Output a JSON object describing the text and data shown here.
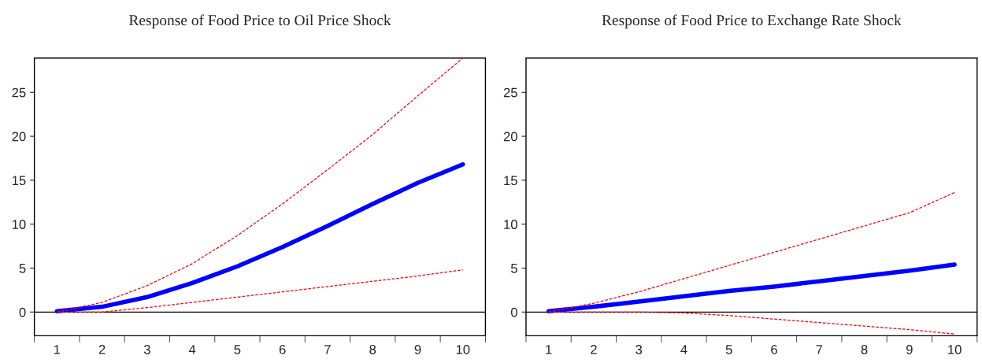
{
  "chart_data": [
    {
      "type": "line",
      "title": "Response of Food Price to Oil Price Shock",
      "categories": [
        "1",
        "2",
        "3",
        "4",
        "5",
        "6",
        "7",
        "8",
        "9",
        "10"
      ],
      "ylim": [
        -2.7,
        28.9
      ],
      "yticks": [
        0,
        5,
        10,
        15,
        20,
        25
      ],
      "grid": false,
      "legend": false,
      "marker": "none",
      "ref_lines": [
        {
          "axis": "y",
          "value": 0,
          "color": "#000000",
          "line_style": "solid"
        }
      ],
      "series": [
        {
          "color": "#ff0000",
          "line_style": "dashed",
          "values": [
            0,
            1.1,
            3.0,
            5.5,
            8.7,
            12.3,
            16.2,
            20.2,
            24.6,
            28.9
          ]
        },
        {
          "color": "#ff0000",
          "line_style": "dashed",
          "values": [
            0,
            0,
            0.5,
            1.1,
            1.7,
            2.3,
            2.9,
            3.5,
            4.1,
            4.8
          ]
        },
        {
          "color": "#0000ff",
          "line_style": "solid",
          "values": [
            0.1,
            0.6,
            1.7,
            3.3,
            5.2,
            7.4,
            9.8,
            12.3,
            14.7,
            16.8
          ]
        }
      ]
    },
    {
      "type": "line",
      "title": "Response of Food Price to Exchange Rate Shock",
      "categories": [
        "1",
        "2",
        "3",
        "4",
        "5",
        "6",
        "7",
        "8",
        "9",
        "10"
      ],
      "ylim": [
        -2.7,
        28.9
      ],
      "yticks": [
        0,
        5,
        10,
        15,
        20,
        25
      ],
      "grid": false,
      "legend": false,
      "marker": "none",
      "ref_lines": [
        {
          "axis": "y",
          "value": 0,
          "color": "#000000",
          "line_style": "solid"
        }
      ],
      "series": [
        {
          "color": "#ff0000",
          "line_style": "dashed",
          "values": [
            0,
            1.0,
            2.3,
            3.8,
            5.3,
            6.8,
            8.3,
            9.8,
            11.3,
            13.6
          ]
        },
        {
          "color": "#ff0000",
          "line_style": "dashed",
          "values": [
            0,
            0,
            0,
            -0.1,
            -0.4,
            -0.8,
            -1.2,
            -1.6,
            -2.0,
            -2.5
          ]
        },
        {
          "color": "#0000ff",
          "line_style": "solid",
          "values": [
            0.1,
            0.6,
            1.2,
            1.8,
            2.4,
            2.9,
            3.5,
            4.1,
            4.7,
            5.4
          ]
        }
      ]
    }
  ]
}
